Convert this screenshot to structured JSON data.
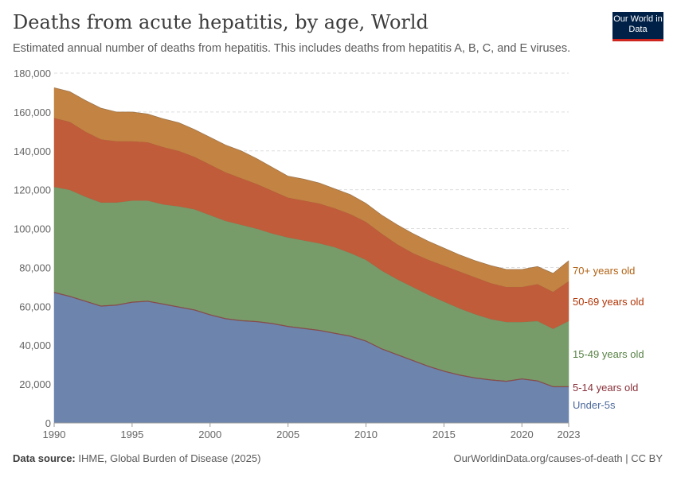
{
  "header": {
    "title": "Deaths from acute hepatitis, by age, World",
    "subtitle": "Estimated annual number of deaths from hepatitis. This includes deaths from hepatitis A, B, C, and E viruses.",
    "logo": "Our World in Data"
  },
  "footer": {
    "source_label": "Data source:",
    "source": "IHME, Global Burden of Disease (2025)",
    "credit": "OurWorldinData.org/causes-of-death | CC BY"
  },
  "chart_data": {
    "type": "area",
    "stacked": true,
    "title": "Deaths from acute hepatitis, by age, World",
    "xlim": [
      1990,
      2023
    ],
    "ylim": [
      0,
      180000
    ],
    "grid": "horizontal dashed",
    "legend": "right, inline labels",
    "x": [
      1990,
      1991,
      1992,
      1993,
      1994,
      1995,
      1996,
      1997,
      1998,
      1999,
      2000,
      2001,
      2002,
      2003,
      2004,
      2005,
      2006,
      2007,
      2008,
      2009,
      2010,
      2011,
      2012,
      2013,
      2014,
      2015,
      2016,
      2017,
      2018,
      2019,
      2020,
      2021,
      2022,
      2023
    ],
    "x_ticks": [
      "1990",
      "1995",
      "2000",
      "2005",
      "2010",
      "2015",
      "2020",
      "2023"
    ],
    "y_ticks": [
      "0",
      "20,000",
      "40,000",
      "60,000",
      "80,000",
      "100,000",
      "120,000",
      "140,000",
      "160,000",
      "180,000"
    ],
    "series": [
      {
        "name": "Under-5s",
        "color": "#6d85ad",
        "label_color": "#4c6a9c",
        "values": [
          67000,
          65000,
          62500,
          60000,
          60500,
          62000,
          62500,
          61000,
          59500,
          58000,
          55500,
          53500,
          52500,
          52000,
          51000,
          49500,
          48500,
          47500,
          46000,
          44500,
          42000,
          38000,
          35000,
          32000,
          29000,
          26500,
          24500,
          23000,
          22000,
          21300,
          22500,
          21500,
          18500,
          18500
        ]
      },
      {
        "name": "5-14 years old",
        "color": "#8c4a4a",
        "label_color": "#883039",
        "values": [
          500,
          500,
          500,
          500,
          500,
          500,
          500,
          500,
          500,
          500,
          500,
          500,
          500,
          500,
          500,
          500,
          500,
          500,
          500,
          500,
          500,
          500,
          500,
          500,
          500,
          500,
          500,
          500,
          500,
          500,
          500,
          500,
          500,
          500
        ]
      },
      {
        "name": "15-49 years old",
        "color": "#789b6a",
        "label_color": "#578145",
        "values": [
          54000,
          54500,
          53500,
          53000,
          52500,
          52000,
          51500,
          51000,
          51500,
          51500,
          51000,
          50000,
          49000,
          47500,
          46000,
          45500,
          45000,
          44500,
          44000,
          42500,
          41500,
          40000,
          38500,
          37500,
          36500,
          35500,
          34000,
          32500,
          31000,
          30200,
          29000,
          30500,
          29500,
          33500
        ]
      },
      {
        "name": "50-69 years old",
        "color": "#c05c39",
        "label_color": "#b13507",
        "values": [
          35500,
          35000,
          33500,
          32500,
          31500,
          30500,
          30000,
          29500,
          28500,
          27000,
          26000,
          25000,
          24000,
          23000,
          22000,
          20500,
          20500,
          20500,
          20000,
          20000,
          19500,
          19000,
          18000,
          17500,
          18000,
          18500,
          19000,
          19000,
          18500,
          18000,
          18000,
          19000,
          19000,
          20500
        ]
      },
      {
        "name": "70+ years old",
        "color": "#c38342",
        "label_color": "#b16214",
        "values": [
          15500,
          15500,
          16000,
          16000,
          15000,
          15000,
          14500,
          14500,
          14500,
          14000,
          14000,
          14000,
          14000,
          13000,
          12000,
          11000,
          11000,
          10500,
          10000,
          10000,
          9500,
          9500,
          10000,
          10000,
          9500,
          9000,
          8500,
          8500,
          9000,
          9000,
          9000,
          9000,
          9500,
          10500
        ]
      }
    ]
  }
}
